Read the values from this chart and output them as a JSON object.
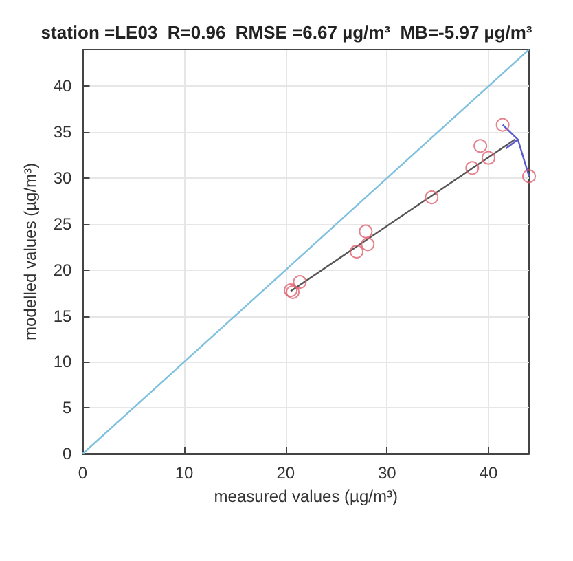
{
  "chart_data": {
    "type": "scatter",
    "title": "station =LE03  R=0.96  RMSE =6.67 µg/m³  MB=-5.97 µg/m³",
    "xlabel": "measured values (µg/m³)",
    "ylabel": "modelled values (µg/m³)",
    "xlim": [
      0,
      44
    ],
    "ylim": [
      0,
      44
    ],
    "xticks": [
      0,
      10,
      20,
      30,
      40
    ],
    "yticks": [
      0,
      5,
      10,
      15,
      20,
      25,
      30,
      35,
      40
    ],
    "grid": true,
    "series": [
      {
        "type": "line",
        "marker": "none",
        "color": "#7ec0de",
        "x": [
          0,
          44
        ],
        "values": [
          0,
          44
        ]
      },
      {
        "type": "line",
        "marker": "none",
        "color": "#555555",
        "x": [
          20.5,
          42.6
        ],
        "values": [
          17.7,
          34.2
        ]
      },
      {
        "type": "line",
        "marker": "none",
        "color": "#5a5ad0",
        "x": [
          41.4,
          42.9,
          44
        ],
        "values": [
          35.8,
          34.2,
          30.2
        ]
      },
      {
        "type": "line",
        "marker": "none",
        "color": "#5a5ad0",
        "x": [
          41.7,
          42.9
        ],
        "values": [
          33.2,
          34.2
        ]
      },
      {
        "marker": "circle",
        "color": "#e06070",
        "x": [
          20.5,
          20.7,
          21.4,
          27.0,
          28.1,
          27.9,
          34.4,
          38.4,
          40.0,
          39.2,
          41.4,
          44.0
        ],
        "values": [
          17.8,
          17.6,
          18.7,
          22.0,
          22.8,
          24.2,
          27.9,
          31.1,
          32.2,
          33.5,
          35.8,
          30.2
        ]
      }
    ]
  }
}
